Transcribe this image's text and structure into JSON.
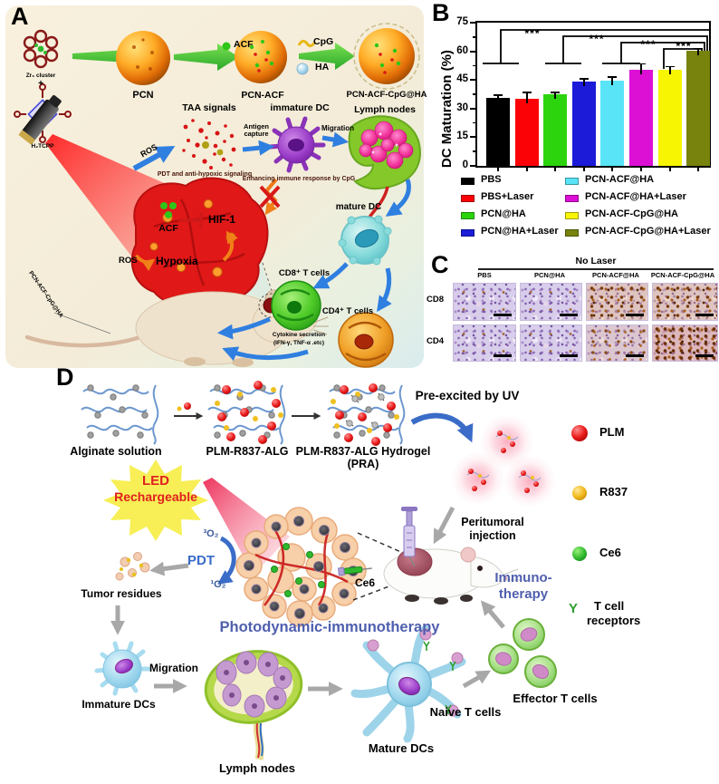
{
  "chart_data": {
    "type": "bar",
    "title": "",
    "ylabel": "DC Maturation (%)",
    "ylim": [
      0,
      75
    ],
    "yticks": [
      0,
      15,
      30,
      45,
      60,
      75
    ],
    "categories": [
      "PBS",
      "PBS+Laser",
      "PCN@HA",
      "PCN@HA+Laser",
      "PCN-ACF@HA",
      "PCN-ACF@HA+Laser",
      "PCN-ACF-CpG@HA",
      "PCN-ACF-CpG@HA+Laser"
    ],
    "values": [
      35.5,
      35,
      37.5,
      44,
      44.5,
      50.5,
      50.5,
      60.5
    ],
    "errors": [
      1.5,
      3.5,
      1,
      1.5,
      2,
      3,
      1.5,
      1
    ],
    "colors": [
      "#000000",
      "#fb0207",
      "#2bd40d",
      "#1b1bd8",
      "#59e5f7",
      "#dc0fd5",
      "#f8f503",
      "#77830c"
    ],
    "significance": [
      "***",
      "***",
      "***",
      "***"
    ],
    "legend_position": "below",
    "grid": false
  },
  "panel_a": {
    "label": "A",
    "zr_cluster": "Zr₆ cluster",
    "plus": "+",
    "h2tcpp": "H₂TCPP",
    "pcn": "PCN",
    "acf_reagent": "ACF",
    "pcn_acf": "PCN-ACF",
    "cpg": "CpG",
    "ha": "HA",
    "pcn_acf_cpg_ha": "PCN-ACF-CpG@HA",
    "taa_signals": "TAA signals",
    "ros_arrow": "ROS",
    "pdt_signaling": "PDT and anti-hypoxic signaling",
    "antigen_capture": "Antigen capture",
    "immature_dc": "immature DC",
    "migration": "Migration",
    "enhancing": "Enhancing immune response by CpG",
    "lymph_nodes": "Lymph nodes",
    "acf_inhibitor": "ACF",
    "hif1": "HIF-1",
    "ros_hypoxia": "ROS",
    "hypoxia": "Hypoxia",
    "mature_dc": "mature DC",
    "cd8_t_cells": "CD8⁺ T cells",
    "cd4_t_cells": "CD4⁺ T cells",
    "cytokine_line1": "Cytokine secretion",
    "cytokine_line2": "(IFN-γ,  TNF-α .etc)",
    "mouse_injection_label": "PCN-ACF-CpG@HA"
  },
  "panel_b": {
    "label": "B"
  },
  "panel_c": {
    "label": "C",
    "group_header": "No Laser",
    "columns": [
      "PBS",
      "PCN@HA",
      "PCN-ACF@HA",
      "PCN-ACF-CpG@HA"
    ],
    "rows": [
      "CD8",
      "CD4"
    ],
    "stain_levels": [
      [
        "low",
        "low",
        "high",
        "high"
      ],
      [
        "low",
        "low",
        "med",
        "vhigh"
      ]
    ]
  },
  "panel_d": {
    "label": "D",
    "alginate": "Alginate solution",
    "plm_r837_alg": "PLM-R837-ALG",
    "hydrogel_line1": "PLM-R837-ALG Hydrogel",
    "hydrogel_line2": "(PRA)",
    "pre_excited": "Pre-excited by UV",
    "led_line1": "LED",
    "led_line2": "Rechargeable",
    "o2_triplet": "³O₂",
    "pdt": "PDT",
    "o2_singlet": "¹O₂",
    "tumor_residues": "Tumor residues",
    "ce6_injection": "Ce6",
    "peritumoral_line1": "Peritumoral",
    "peritumoral_line2": "injection",
    "immuno_line1": "Immuno-",
    "immuno_line2": "therapy",
    "pdi": "Photodynamic-immunotherapy",
    "immature_dcs": "Immature DCs",
    "migration": "Migration",
    "lymph_nodes": "Lymph nodes",
    "mature_dcs": "Mature DCs",
    "naive_t_cells": "Naive T cells",
    "effector_t_cells": "Effector T cells",
    "legend": {
      "plm": "PLM",
      "r837": "R837",
      "ce6": "Ce6",
      "tcell_line1": "T cell",
      "tcell_line2": "receptors",
      "y_icon": "Y"
    }
  }
}
